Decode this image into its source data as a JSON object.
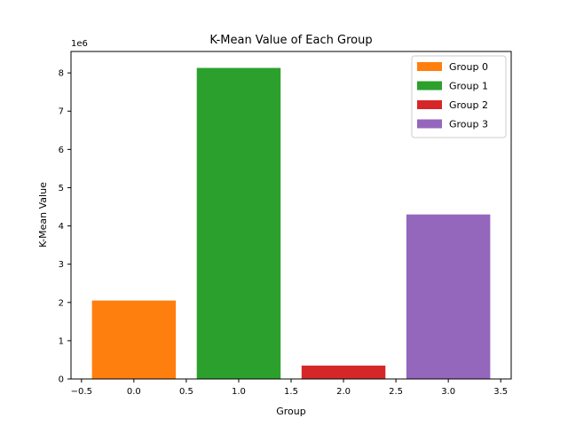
{
  "chart_data": {
    "type": "bar",
    "title": "K-Mean Value of Each Group",
    "xlabel": "Group",
    "ylabel": "K-Mean Value",
    "y_offset_label": "1e6",
    "xlim": [
      -0.6,
      3.6
    ],
    "ylim": [
      0,
      8560000
    ],
    "x_ticks": [
      -0.5,
      0.0,
      0.5,
      1.0,
      1.5,
      2.0,
      2.5,
      3.0,
      3.5
    ],
    "x_tick_labels": [
      "−0.5",
      "0.0",
      "0.5",
      "1.0",
      "1.5",
      "2.0",
      "2.5",
      "3.0",
      "3.5"
    ],
    "y_ticks": [
      0,
      1000000,
      2000000,
      3000000,
      4000000,
      5000000,
      6000000,
      7000000,
      8000000
    ],
    "y_tick_labels": [
      "0",
      "1",
      "2",
      "3",
      "4",
      "5",
      "6",
      "7",
      "8"
    ],
    "bar_width": 0.8,
    "grid": false,
    "legend_position": "top-right",
    "series": [
      {
        "name": "Group 0",
        "x": 0,
        "value": 2050000,
        "color": "#ff7f0e"
      },
      {
        "name": "Group 1",
        "x": 1,
        "value": 8130000,
        "color": "#2ca02c"
      },
      {
        "name": "Group 2",
        "x": 2,
        "value": 350000,
        "color": "#d62728"
      },
      {
        "name": "Group 3",
        "x": 3,
        "value": 4300000,
        "color": "#9467bd"
      }
    ]
  }
}
